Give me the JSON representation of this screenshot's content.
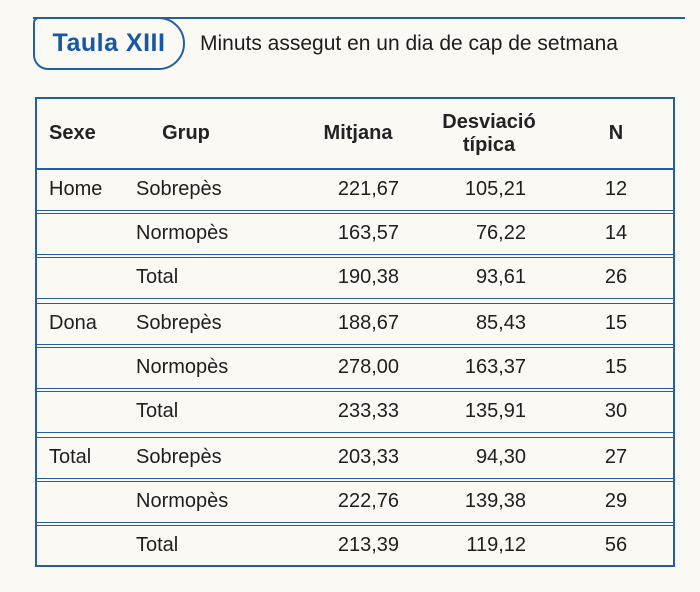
{
  "page": {
    "background": "#faf9f3",
    "accent_blue": "#245fa4",
    "label_blue": "#1558a6",
    "text_color": "#1e1e1e"
  },
  "header": {
    "tag": "Taula XIII",
    "title": "Minuts assegut en un dia de cap de setmana"
  },
  "table": {
    "columns": {
      "sexe": "Sexe",
      "grup": "Grup",
      "mitjana": "Mitjana",
      "desviacio": "Desviació típica",
      "n": "N"
    },
    "rows": [
      {
        "sexe": "Home",
        "grup": "Sobrepès",
        "mitjana": "221,67",
        "desviacio": "105,21",
        "n": "12"
      },
      {
        "sexe": "",
        "grup": "Normopès",
        "mitjana": "163,57",
        "desviacio": "76,22",
        "n": "14"
      },
      {
        "sexe": "",
        "grup": "Total",
        "mitjana": "190,38",
        "desviacio": "93,61",
        "n": "26"
      },
      {
        "sexe": "Dona",
        "grup": "Sobrepès",
        "mitjana": "188,67",
        "desviacio": "85,43",
        "n": "15"
      },
      {
        "sexe": "",
        "grup": "Normopès",
        "mitjana": "278,00",
        "desviacio": "163,37",
        "n": "15"
      },
      {
        "sexe": "",
        "grup": "Total",
        "mitjana": "233,33",
        "desviacio": "135,91",
        "n": "30"
      },
      {
        "sexe": "Total",
        "grup": "Sobrepès",
        "mitjana": "203,33",
        "desviacio": "94,30",
        "n": "27"
      },
      {
        "sexe": "",
        "grup": "Normopès",
        "mitjana": "222,76",
        "desviacio": "139,38",
        "n": "29"
      },
      {
        "sexe": "",
        "grup": "Total",
        "mitjana": "213,39",
        "desviacio": "119,12",
        "n": "56"
      }
    ]
  }
}
